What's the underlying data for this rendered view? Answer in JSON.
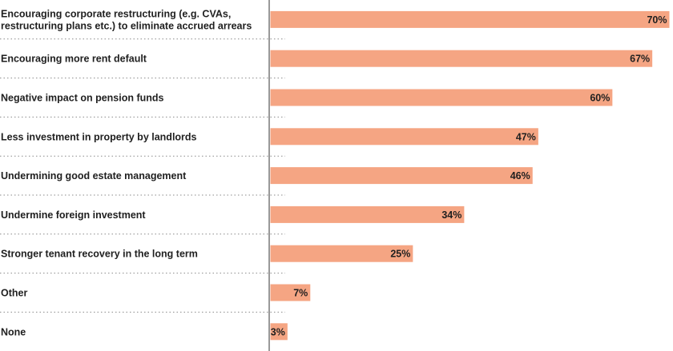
{
  "chart_data": {
    "type": "bar",
    "orientation": "horizontal",
    "title": "",
    "xlabel": "",
    "ylabel": "",
    "xlim": [
      0,
      70
    ],
    "grid": false,
    "bar_color": "#f5a583",
    "value_suffix": "%",
    "categories": [
      [
        "Encouraging corporate restructuring (e.g. CVAs,",
        "restructuring plans etc.) to eliminate accrued arrears"
      ],
      [
        "Encouraging more rent default"
      ],
      [
        "Negative impact on pension funds"
      ],
      [
        "Less investment in property by landlords"
      ],
      [
        "Undermining good estate management"
      ],
      [
        "Undermine foreign investment"
      ],
      [
        "Stronger tenant recovery in the long term"
      ],
      [
        "Other"
      ],
      [
        "None"
      ]
    ],
    "values": [
      70,
      67,
      60,
      47,
      46,
      34,
      25,
      7,
      3
    ]
  }
}
